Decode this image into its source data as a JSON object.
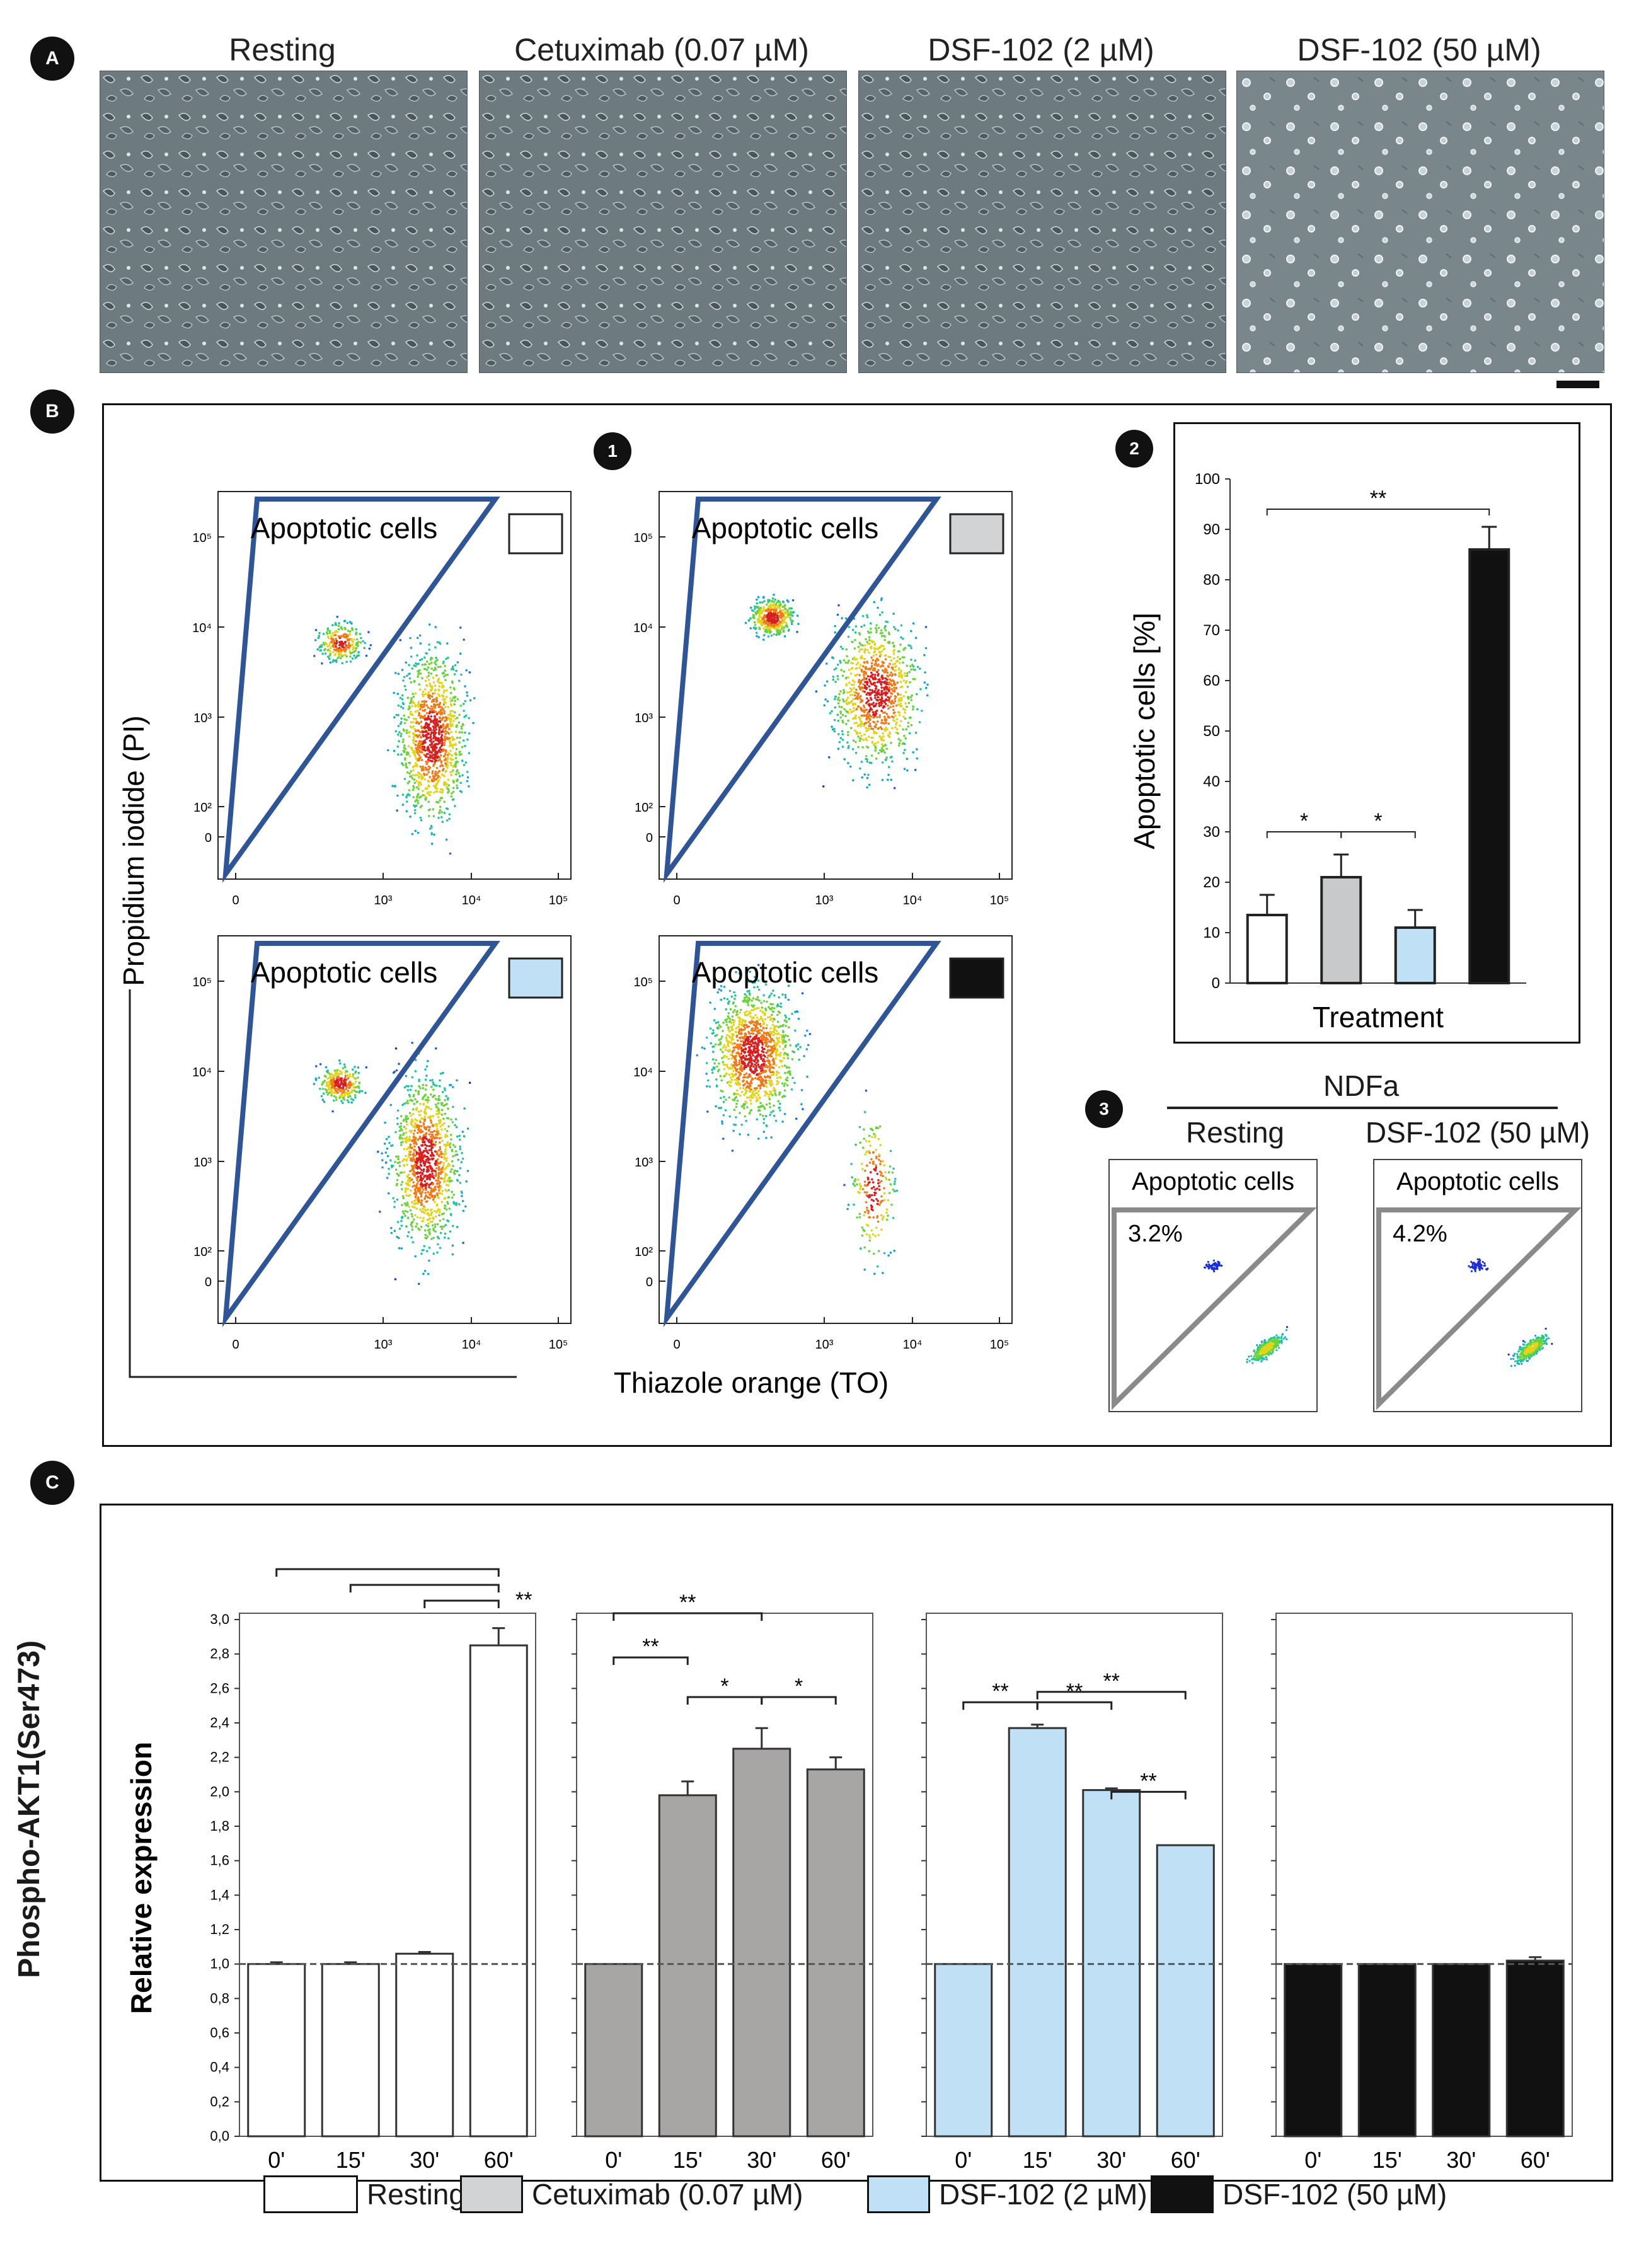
{
  "panels": {
    "A": "A",
    "B": "B",
    "C": "C"
  },
  "panel_a": {
    "titles": [
      "Resting",
      "Cetuximab (0.07 µM)",
      "DSF-102  (2 µM)",
      "DSF-102  (50 µM)"
    ],
    "scale_bar": "scale-bar"
  },
  "panel_b": {
    "subpanel_numbers": [
      "1",
      "2",
      "3"
    ],
    "gate_label": "Apoptotic cells",
    "y_axis_label": "Propidium iodide (PI)",
    "x_axis_label": "Thiazole orange (TO)",
    "log_ticks_y": [
      "10⁵",
      "10⁴",
      "10³",
      "10²",
      "0"
    ],
    "log_ticks_x": [
      "0",
      "10³",
      "10⁴",
      "10⁵"
    ],
    "swatch_colors": [
      "#ffffff",
      "#d1d3d4",
      "#bfe0f5",
      "#111111"
    ],
    "ndfa": {
      "header": "NDFa",
      "columns": [
        "Resting",
        "DSF-102 (50 µM)"
      ],
      "gate_label": "Apoptotic cells",
      "percents": [
        "3.2%",
        "4.2%"
      ]
    }
  },
  "chart_data": [
    {
      "type": "bar",
      "panel": "B2",
      "categories": [
        "Resting",
        "Cetuximab (0.07 µM)",
        "DSF-102 (2 µM)",
        "DSF-102 (50 µM)"
      ],
      "values": [
        13.5,
        21,
        11,
        86
      ],
      "errors": [
        4,
        4.5,
        3.5,
        4.5
      ],
      "colors": [
        "#ffffff",
        "#c8c9cb",
        "#bfe0f5",
        "#111111"
      ],
      "xlabel": "Treatment",
      "ylabel": "Apoptotic cells [%]",
      "ylim": [
        0,
        100
      ],
      "yticks": [
        "0",
        "10",
        "20",
        "30",
        "40",
        "50",
        "60",
        "70",
        "80",
        "90",
        "100"
      ],
      "significance": [
        {
          "from": 0,
          "to": 3,
          "label": "**"
        },
        {
          "from": 0,
          "to": 1,
          "label": "*"
        },
        {
          "from": 1,
          "to": 2,
          "label": "*"
        }
      ]
    },
    {
      "type": "bar",
      "panel": "C",
      "ylabel": "Relative expression",
      "outer_label": "Phospho-AKT1(Ser473)",
      "ylim": [
        0,
        3.0
      ],
      "yticks": [
        "0,0",
        "0,2",
        "0,4",
        "0,6",
        "0,8",
        "1,0",
        "1,2",
        "1,4",
        "1,6",
        "1,8",
        "2,0",
        "2,2",
        "2,4",
        "2,6",
        "2,8",
        "3,0"
      ],
      "categories": [
        "0'",
        "15'",
        "30'",
        "60'"
      ],
      "series": [
        {
          "name": "Resting",
          "color": "#ffffff",
          "values": [
            1.0,
            1.0,
            1.06,
            2.85
          ],
          "errors": [
            0.01,
            0.01,
            0.01,
            0.1
          ]
        },
        {
          "name": "Cetuximab (0.07 µM)",
          "color": "#a8a6a5",
          "values": [
            1.0,
            1.98,
            2.25,
            2.13
          ],
          "errors": [
            0,
            0.08,
            0.12,
            0.07
          ]
        },
        {
          "name": "DSF-102 (2 µM)",
          "color": "#bfe0f5",
          "values": [
            1.0,
            2.37,
            2.01,
            1.69
          ],
          "errors": [
            0,
            0.02,
            0.01,
            0.0
          ]
        },
        {
          "name": "DSF-102 (50 µM)",
          "color": "#111111",
          "values": [
            1.0,
            1.0,
            1.0,
            1.02
          ],
          "errors": [
            0,
            0,
            0,
            0.02
          ]
        }
      ],
      "significance": [
        [
          {
            "from": 0,
            "to": 3,
            "label": ""
          },
          {
            "from": 1,
            "to": 3,
            "label": ""
          },
          {
            "from": 2,
            "to": 3,
            "label": "**"
          }
        ],
        [
          {
            "from": 0,
            "to": 2,
            "label": "**"
          },
          {
            "from": 0,
            "to": 1,
            "label": "**"
          },
          {
            "from": 1,
            "to": 2,
            "label": "*"
          },
          {
            "from": 2,
            "to": 3,
            "label": "*"
          }
        ],
        [
          {
            "from": 0,
            "to": 1,
            "label": "**"
          },
          {
            "from": 1,
            "to": 3,
            "label": "**"
          },
          {
            "from": 1,
            "to": 2,
            "label": "**"
          },
          {
            "from": 2,
            "to": 3,
            "label": "**"
          }
        ],
        []
      ]
    }
  ],
  "legend": [
    {
      "label": "Resting",
      "color": "#ffffff"
    },
    {
      "label": "Cetuximab (0.07 µM)",
      "color": "#d1d3d4"
    },
    {
      "label": "DSF-102 (2 µM)",
      "color": "#bfe0f5"
    },
    {
      "label": "DSF-102 (50 µM)",
      "color": "#111111"
    }
  ]
}
